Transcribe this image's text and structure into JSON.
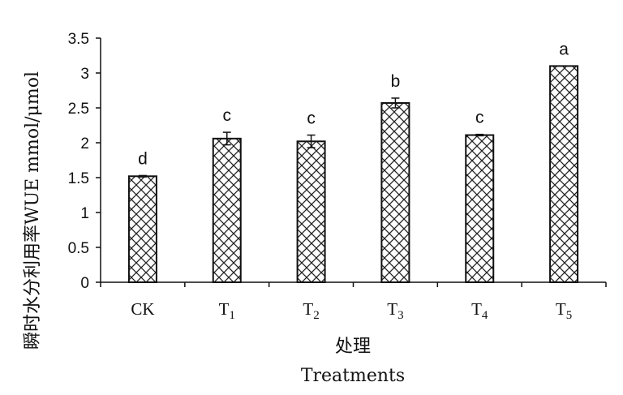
{
  "chart_data": {
    "type": "bar",
    "categories": [
      {
        "base": "CK",
        "sub": ""
      },
      {
        "base": "T",
        "sub": "1"
      },
      {
        "base": "T",
        "sub": "2"
      },
      {
        "base": "T",
        "sub": "3"
      },
      {
        "base": "T",
        "sub": "4"
      },
      {
        "base": "T",
        "sub": "5"
      }
    ],
    "values": [
      1.52,
      2.06,
      2.02,
      2.57,
      2.11,
      3.1
    ],
    "errors": [
      0.01,
      0.09,
      0.09,
      0.07,
      0.01,
      0.0
    ],
    "significance": [
      "d",
      "c",
      "c",
      "b",
      "c",
      "a"
    ],
    "ylim": [
      0,
      3.5
    ],
    "yticks": [
      "0",
      "0.5",
      "1",
      "1.5",
      "2",
      "2.5",
      "3",
      "3.5"
    ],
    "ylabel": "瞬时水分利用率WUE mmol/μmol",
    "xlabel": "处理",
    "xlabel2": "Treatments",
    "grid": false,
    "pattern": "crosshatch"
  }
}
